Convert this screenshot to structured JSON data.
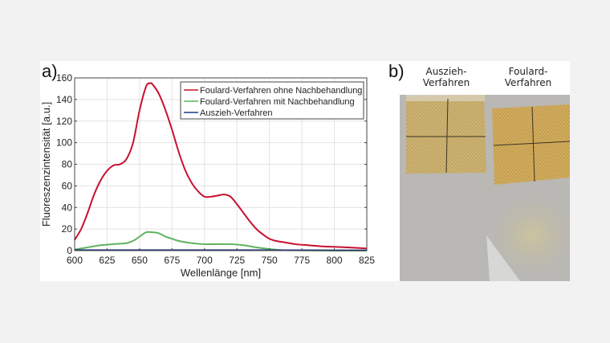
{
  "panel_a": {
    "label": "a)"
  },
  "panel_b": {
    "label": "b)",
    "titles": [
      "Auszieh-\nVerfahren",
      "Foulard-\nVerfahren"
    ],
    "title_lines": [
      [
        "Auszieh-",
        "Verfahren"
      ],
      [
        "Foulard-",
        "Verfahren"
      ]
    ]
  },
  "colors": {
    "red": "#c8102e",
    "green": "#5fb35f",
    "blue": "#1f3a8a",
    "fabric": "#c9ad6a",
    "background": "#f2f2f2"
  },
  "chart_data": {
    "type": "line",
    "title": "",
    "xlabel": "Wellenlänge [nm]",
    "ylabel": "Fluoreszenzintensität [a.u.]",
    "xlim": [
      600,
      825
    ],
    "ylim": [
      0,
      160
    ],
    "xticks": [
      600,
      625,
      650,
      675,
      700,
      725,
      750,
      775,
      800,
      825
    ],
    "yticks": [
      0,
      20,
      40,
      60,
      80,
      100,
      120,
      140,
      160
    ],
    "grid": true,
    "legend_position": "top-right",
    "series": [
      {
        "name": "Foulard-Verfahren ohne Nachbehandlung",
        "color": "#c8102e",
        "x": [
          600,
          605,
          610,
          615,
          620,
          625,
          630,
          635,
          640,
          645,
          650,
          655,
          658,
          660,
          665,
          670,
          675,
          680,
          685,
          690,
          695,
          700,
          705,
          710,
          715,
          720,
          725,
          730,
          735,
          740,
          745,
          750,
          755,
          760,
          770,
          780,
          790,
          800,
          810,
          825
        ],
        "y": [
          10,
          20,
          35,
          52,
          65,
          74,
          79,
          80,
          85,
          100,
          130,
          152,
          155,
          154,
          145,
          130,
          112,
          92,
          75,
          63,
          55,
          50,
          50,
          51,
          52,
          50,
          43,
          35,
          27,
          20,
          15,
          11,
          9,
          8,
          6,
          5,
          4,
          3.5,
          3,
          2
        ]
      },
      {
        "name": "Foulard-Verfahren mit Nachbehandlung",
        "color": "#5fb35f",
        "x": [
          600,
          610,
          620,
          630,
          640,
          645,
          650,
          655,
          660,
          665,
          670,
          675,
          680,
          690,
          700,
          710,
          720,
          730,
          740,
          750,
          760,
          775,
          800,
          825
        ],
        "y": [
          1,
          3,
          5,
          6,
          7,
          9,
          13,
          17,
          17,
          16,
          13,
          11,
          9,
          7,
          6,
          6,
          6,
          5,
          3,
          1.5,
          0.5,
          0.2,
          0,
          0
        ]
      },
      {
        "name": "Auszieh-Verfahren",
        "color": "#1f3a8a",
        "x": [
          600,
          650,
          700,
          750,
          800,
          825
        ],
        "y": [
          0.5,
          0.5,
          0.5,
          0.4,
          0.3,
          0.3
        ]
      }
    ]
  }
}
